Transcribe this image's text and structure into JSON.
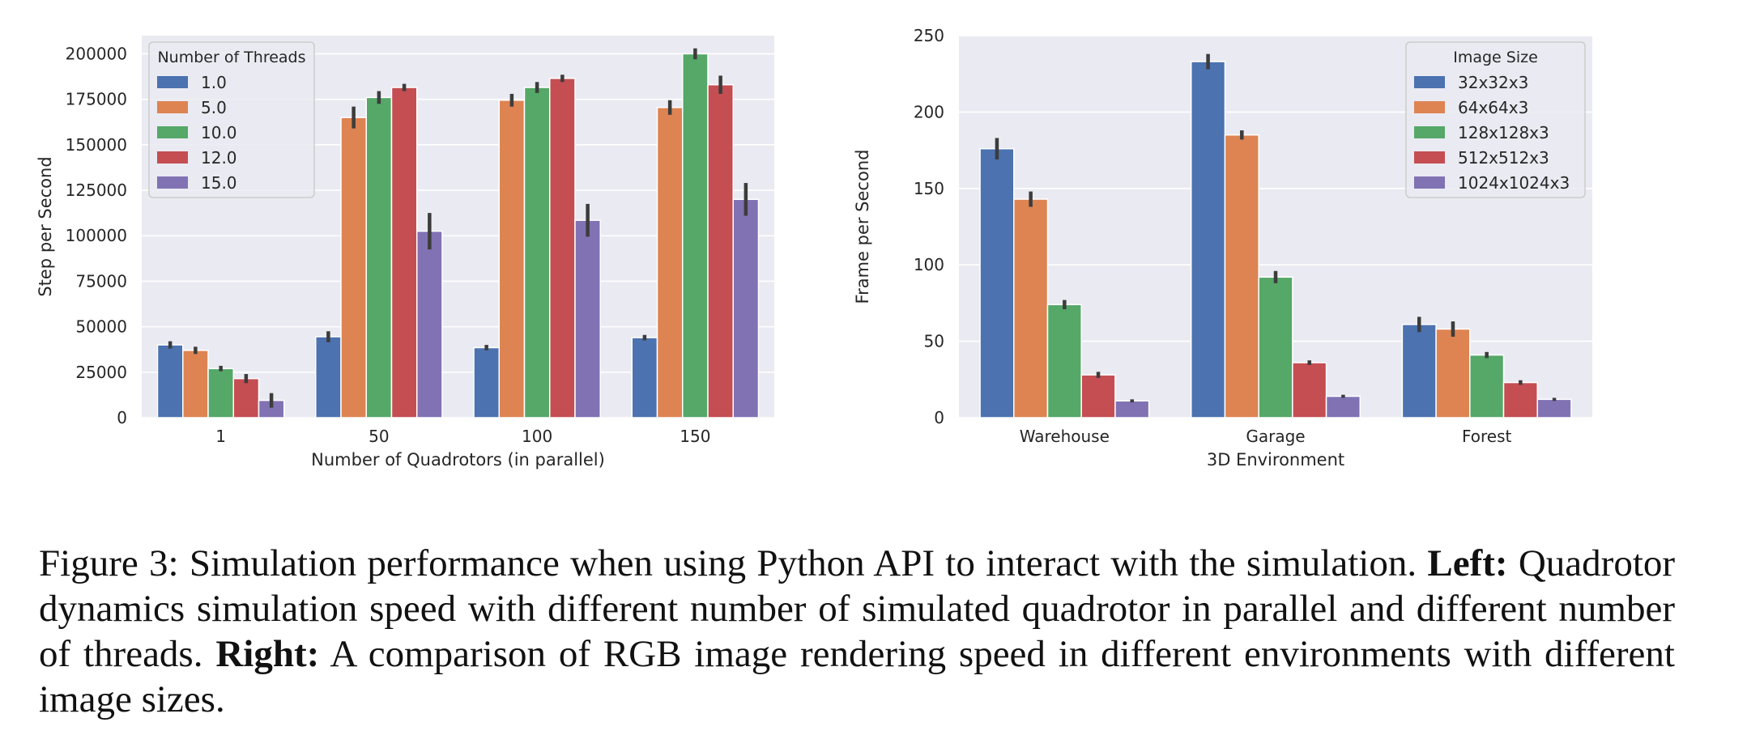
{
  "chart_data": [
    {
      "type": "bar",
      "xlabel": "Number of Quadrotors (in parallel)",
      "ylabel": "Step per Second",
      "categories": [
        "1",
        "50",
        "100",
        "150"
      ],
      "ylim": [
        0,
        210000
      ],
      "yticks": [
        0,
        25000,
        50000,
        75000,
        100000,
        125000,
        150000,
        175000,
        200000
      ],
      "legend": {
        "title": "Number of Threads",
        "placement": "top-left"
      },
      "grid": true,
      "series": [
        {
          "name": "1.0",
          "color": "#4c72b0",
          "values": [
            40000,
            44500,
            38500,
            44000
          ],
          "errors": [
            2000,
            3000,
            1500,
            1500
          ]
        },
        {
          "name": "5.0",
          "color": "#dd8452",
          "values": [
            37000,
            165000,
            174500,
            170500
          ],
          "errors": [
            2000,
            6000,
            3500,
            4000
          ]
        },
        {
          "name": "10.0",
          "color": "#55a868",
          "values": [
            27000,
            176000,
            181500,
            200000
          ],
          "errors": [
            1500,
            3500,
            3000,
            3000
          ]
        },
        {
          "name": "12.0",
          "color": "#c44e52",
          "values": [
            21500,
            181500,
            186500,
            183000
          ],
          "errors": [
            2500,
            2000,
            2000,
            5000
          ]
        },
        {
          "name": "15.0",
          "color": "#8172b3",
          "values": [
            9500,
            102500,
            108500,
            120000
          ],
          "errors": [
            4000,
            10000,
            9000,
            9000
          ]
        }
      ]
    },
    {
      "type": "bar",
      "xlabel": "3D Environment",
      "ylabel": "Frame per Second",
      "categories": [
        "Warehouse",
        "Garage",
        "Forest"
      ],
      "ylim": [
        0,
        250
      ],
      "yticks": [
        0,
        50,
        100,
        150,
        200,
        250
      ],
      "legend": {
        "title": "Image Size",
        "placement": "top-right"
      },
      "grid": true,
      "series": [
        {
          "name": "32x32x3",
          "color": "#4c72b0",
          "values": [
            176,
            233,
            61
          ],
          "errors": [
            7,
            5,
            5
          ]
        },
        {
          "name": "64x64x3",
          "color": "#dd8452",
          "values": [
            143,
            185,
            58
          ],
          "errors": [
            5,
            3,
            5
          ]
        },
        {
          "name": "128x128x3",
          "color": "#55a868",
          "values": [
            74,
            92,
            41
          ],
          "errors": [
            3,
            4,
            2
          ]
        },
        {
          "name": "512x512x3",
          "color": "#c44e52",
          "values": [
            28,
            36,
            23
          ],
          "errors": [
            2,
            1.5,
            1.5
          ]
        },
        {
          "name": "1024x1024x3",
          "color": "#8172b3",
          "values": [
            11,
            14,
            12
          ],
          "errors": [
            1,
            1,
            1
          ]
        }
      ]
    }
  ],
  "caption": {
    "label": "Figure 3:",
    "text1": "Simulation performance when using Python API to interact with the simulation.",
    "left_label": "Left:",
    "text2": "Quadrotor dynamics simulation speed with different number of simulated quadrotor in parallel and different number of threads.",
    "right_label": "Right:",
    "text3": "A comparison of RGB image rendering speed in different environments with different image sizes."
  }
}
